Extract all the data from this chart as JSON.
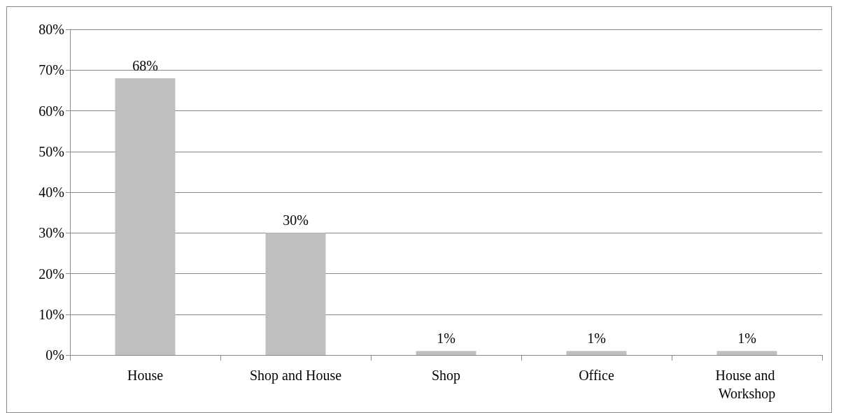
{
  "chart_data": {
    "type": "bar",
    "categories": [
      "House",
      "Shop and House",
      "Shop",
      "Office",
      "House and Workshop"
    ],
    "values": [
      68,
      30,
      1,
      1,
      1
    ],
    "color": "#bfbfbf",
    "value_labels": [
      "68%",
      "30%",
      "1%",
      "1%",
      "1%"
    ],
    "ylim": [
      0,
      80
    ],
    "yticks": [
      {
        "value": 0,
        "label": "0%"
      },
      {
        "value": 10,
        "label": "10%"
      },
      {
        "value": 20,
        "label": "20%"
      },
      {
        "value": 30,
        "label": "30%"
      },
      {
        "value": 40,
        "label": "40%"
      },
      {
        "value": 50,
        "label": "50%"
      },
      {
        "value": 60,
        "label": "60%"
      },
      {
        "value": 70,
        "label": "70%"
      },
      {
        "value": 80,
        "label": "80%"
      }
    ],
    "grid": "y"
  }
}
